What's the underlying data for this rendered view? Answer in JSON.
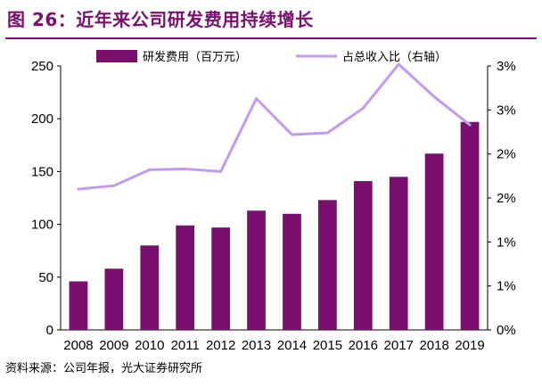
{
  "figure": {
    "title": "图 26：近年来公司研发费用持续增长",
    "source": "资料来源：公司年报，光大证券研究所"
  },
  "colors": {
    "bar": "#7a0f6f",
    "line": "#c49af0",
    "title": "#7a0f6f"
  },
  "chart_data": {
    "type": "bar",
    "categories": [
      "2008",
      "2009",
      "2010",
      "2011",
      "2012",
      "2013",
      "2014",
      "2015",
      "2016",
      "2017",
      "2018",
      "2019"
    ],
    "series": [
      {
        "name": "研发费用（百万元）",
        "type": "bar",
        "axis": "left",
        "values": [
          46,
          58,
          80,
          99,
          97,
          113,
          110,
          123,
          141,
          145,
          167,
          197
        ]
      },
      {
        "name": "占总收入比（右轴）",
        "type": "line",
        "axis": "right",
        "values": [
          0.016,
          0.0164,
          0.0182,
          0.0183,
          0.018,
          0.0263,
          0.0222,
          0.0224,
          0.0252,
          0.0302,
          0.0265,
          0.0233
        ]
      }
    ],
    "left_axis": {
      "ylim": [
        0,
        250
      ],
      "ticks": [
        0,
        50,
        100,
        150,
        200,
        250
      ],
      "tick_labels": [
        "0",
        "50",
        "100",
        "150",
        "200",
        "250"
      ]
    },
    "right_axis": {
      "ylim": [
        0,
        0.03
      ],
      "ticks": [
        0,
        0.005,
        0.01,
        0.015,
        0.02,
        0.025,
        0.03
      ],
      "tick_labels": [
        "0%",
        "1%",
        "1%",
        "2%",
        "2%",
        "3%",
        "3%"
      ]
    },
    "legend_position": "top",
    "grid": false
  }
}
